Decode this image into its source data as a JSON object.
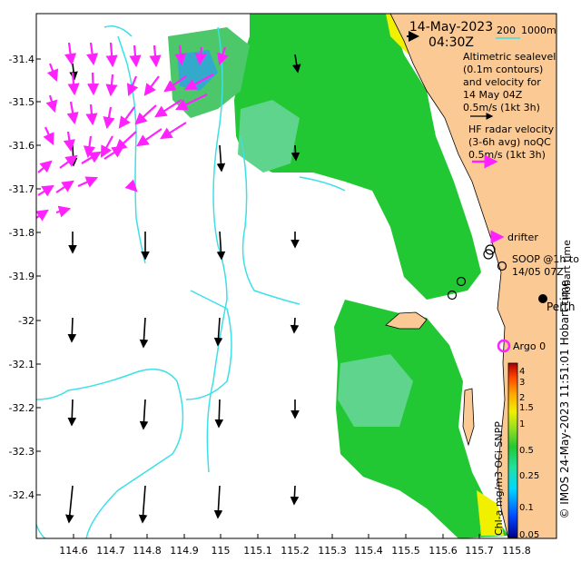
{
  "map": {
    "header": {
      "date": "14-May-2023",
      "time": "04:30Z"
    },
    "scale_legend": {
      "label_200": "200",
      "label_1000": "1000m"
    },
    "altimetry_legend": {
      "lines": [
        "Altimetric sealevel",
        "(0.1m contours)",
        "and velocity for",
        "14 May 04Z",
        "0.5m/s (1kt 3h)"
      ]
    },
    "hf_legend": {
      "lines": [
        "HF radar velocity",
        "(3-6h avg) noQC",
        "0.5m/s (1kt 3h)"
      ]
    },
    "drifter_label": "drifter",
    "soop_label": {
      "line1": "SOOP @1h to",
      "line2": "14/05 07Z"
    },
    "hobart_label": "Hobart time",
    "perth_label": "Perth",
    "argo_label": "Argo 0",
    "x_ticks": [
      "114.6",
      "114.7",
      "114.8",
      "114.9",
      "115",
      "115.1",
      "115.2",
      "115.3",
      "115.4",
      "115.5",
      "115.6",
      "115.7",
      "115.8"
    ],
    "y_ticks": [
      "-31.4",
      "-31.5",
      "-31.6",
      "-31.7",
      "-31.8",
      "-31.9",
      "-32",
      "-32.1",
      "-32.2",
      "-32.3",
      "-32.4"
    ],
    "colorbar": {
      "label": "Chl-a mg/m3 OCi SNPP",
      "ticks": [
        "4",
        "3",
        "2",
        "1.5",
        "1",
        "0.5",
        "0.25",
        "0.1",
        "0.05"
      ],
      "colors": [
        "#00008c",
        "#0048ff",
        "#00d8ff",
        "#22e0a0",
        "#22c833",
        "#8ede22",
        "#f0f000",
        "#ffaa00",
        "#ff4400",
        "#aa0000"
      ]
    },
    "credit": "© IMOS 24-May-2023 11:51:01 Hobart time",
    "colors": {
      "land": "#fbc993",
      "isobath": "#3ce0e6",
      "hf_vector": "#ff22ff",
      "altimetry_vector": "#000000",
      "chl_high": "#22c833",
      "chl_mid": "#5fd48c",
      "chl_low": "#88e0c8"
    }
  }
}
